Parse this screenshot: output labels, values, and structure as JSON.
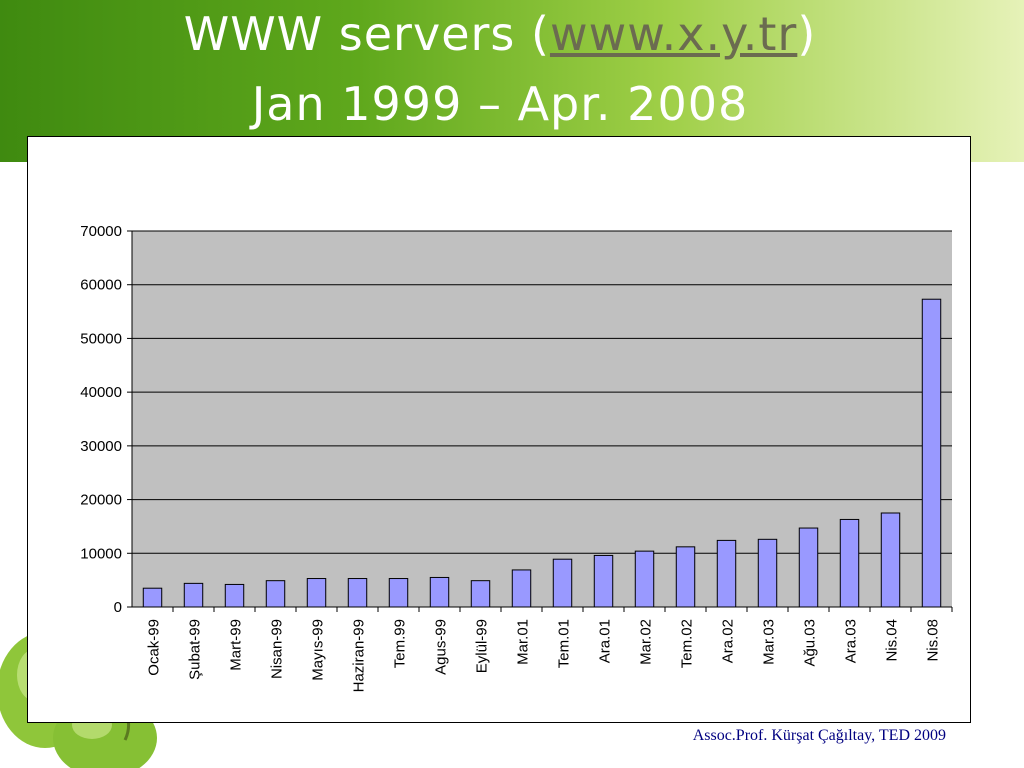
{
  "slide": {
    "title_prefix": "WWW servers (",
    "title_link": "www.x.y.tr",
    "title_suffix": ")",
    "subtitle": "Jan 1999 – Apr. 2008",
    "credit": "Assoc.Prof. Kürşat Çağıltay, TED 2009"
  },
  "colors": {
    "bar_fill": "#9999ff",
    "plot_background": "#c0c0c0",
    "banner_green": "#5fa81c",
    "credit_text": "#000080"
  },
  "decor": {
    "icon": "green-apple-icon"
  },
  "chart_data": {
    "type": "bar",
    "title": "",
    "xlabel": "",
    "ylabel": "",
    "ylim": [
      0,
      70000
    ],
    "yticks": [
      0,
      10000,
      20000,
      30000,
      40000,
      50000,
      60000,
      70000
    ],
    "grid": true,
    "legend": "none",
    "categories": [
      "Ocak-99",
      "Şubat-99",
      "Mart-99",
      "Nisan-99",
      "Mayıs-99",
      "Haziran-99",
      "Tem.99",
      "Agus-99",
      "Eylül-99",
      "Mar.01",
      "Tem.01",
      "Ara.01",
      "Mar.02",
      "Tem.02",
      "Ara.02",
      "Mar.03",
      "Ağu.03",
      "Ara.03",
      "Nis.04",
      "Nis.08"
    ],
    "values": [
      3500,
      4400,
      4200,
      4900,
      5300,
      5300,
      5300,
      5500,
      4900,
      6900,
      8900,
      9600,
      10400,
      11200,
      12400,
      12600,
      14700,
      16300,
      17500,
      57300
    ]
  }
}
